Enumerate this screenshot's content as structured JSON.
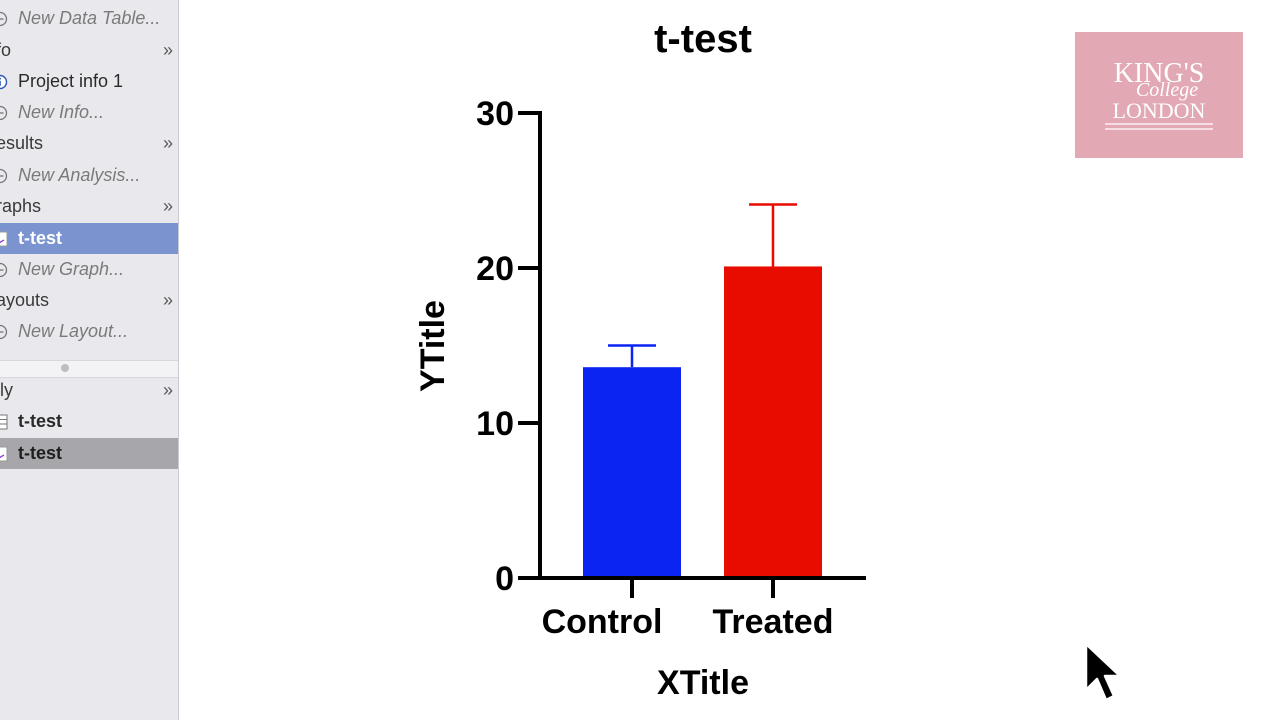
{
  "sidebar": {
    "items": [
      {
        "label": "New Data Table...",
        "kind": "new",
        "icon": "plus-circle-icon"
      },
      {
        "label": "fo",
        "kind": "header"
      },
      {
        "label": "Project info 1",
        "kind": "item",
        "icon": "info-icon"
      },
      {
        "label": "New Info...",
        "kind": "new",
        "icon": "plus-circle-icon"
      },
      {
        "label": "esults",
        "kind": "header"
      },
      {
        "label": "New Analysis...",
        "kind": "new",
        "icon": "plus-circle-icon"
      },
      {
        "label": "raphs",
        "kind": "header"
      },
      {
        "label": "t-test",
        "kind": "selected",
        "icon": "graph-icon"
      },
      {
        "label": "New Graph...",
        "kind": "new",
        "icon": "plus-circle-icon"
      },
      {
        "label": "ayouts",
        "kind": "header"
      },
      {
        "label": "New Layout...",
        "kind": "new",
        "icon": "plus-circle-icon"
      }
    ],
    "family": {
      "header": "ily",
      "items": [
        {
          "label": "t-test",
          "icon": "table-icon"
        },
        {
          "label": "t-test",
          "icon": "graph-icon"
        }
      ]
    },
    "chevron": "»"
  },
  "chart_data": {
    "type": "bar",
    "title": "t-test",
    "xlabel": "XTitle",
    "ylabel": "YTitle",
    "categories": [
      "Control",
      "Treated"
    ],
    "values": [
      13.6,
      20.1
    ],
    "error": [
      1.4,
      4.0
    ],
    "colors": [
      "#0b24f2",
      "#e80c00"
    ],
    "ylim": [
      0,
      30
    ],
    "yticks": [
      0,
      10,
      20,
      30
    ]
  },
  "logo": {
    "line1": "KING'S",
    "line2": "College",
    "line3": "LONDON",
    "color": "#e2a9b4"
  }
}
